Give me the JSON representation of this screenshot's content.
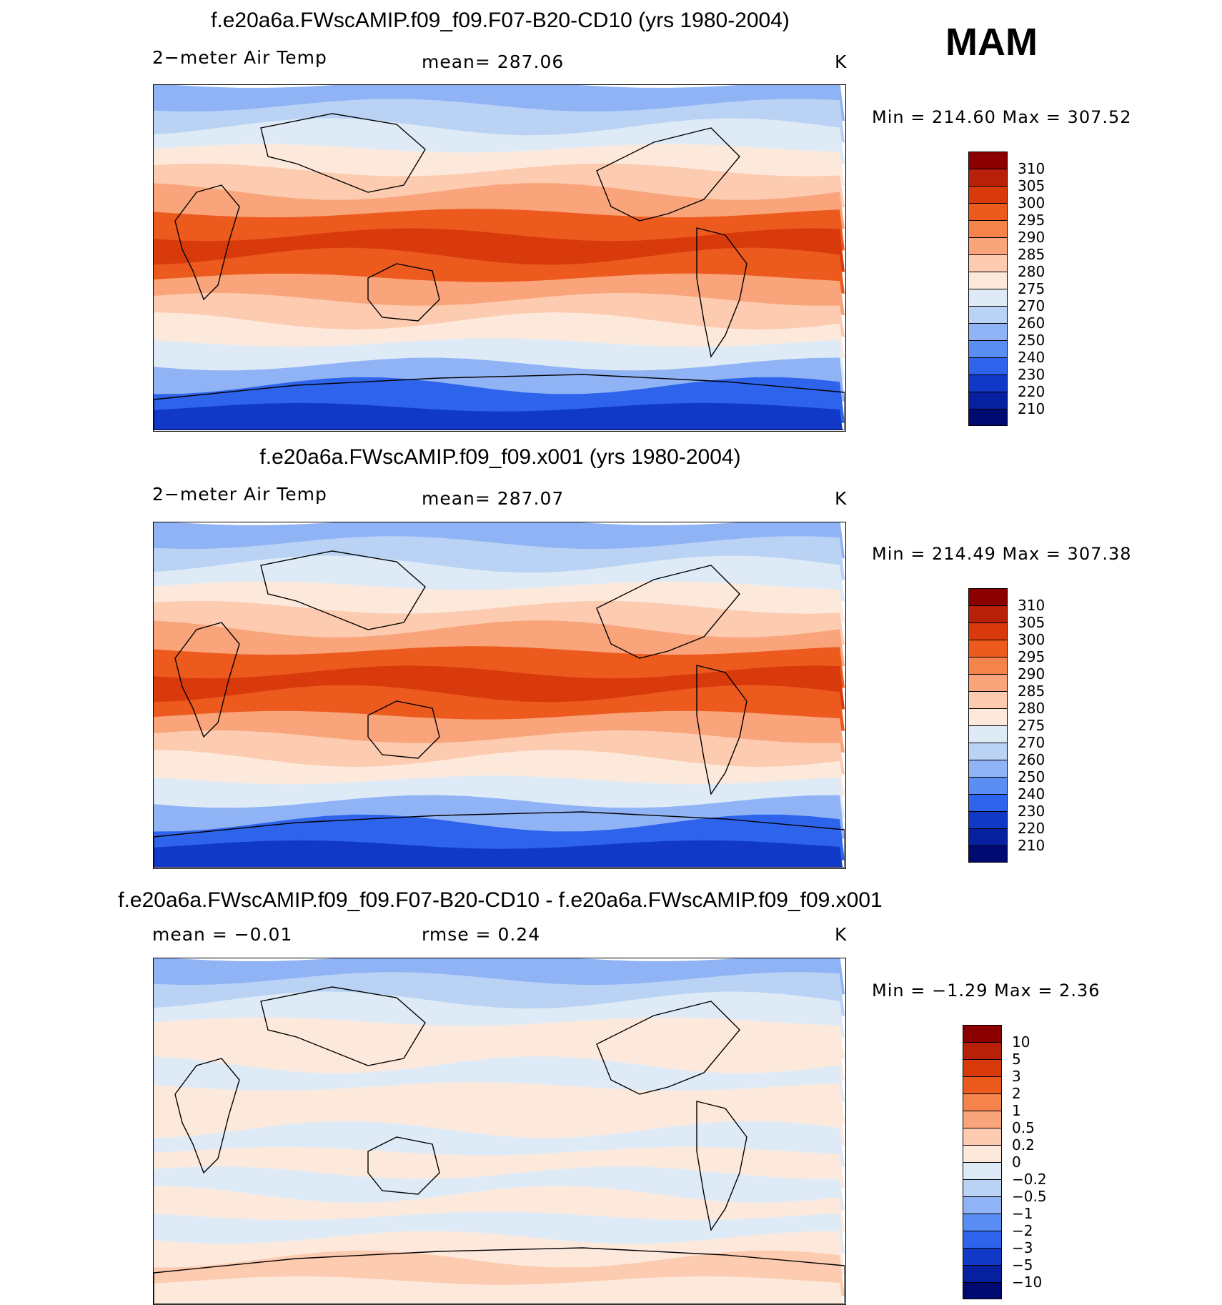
{
  "season": "MAM",
  "panels": [
    {
      "id": "control",
      "title": "f.e20a6a.FWscAMIP.f09_f09.F07-B20-CD10 (yrs 1980-2004)",
      "left_label": "2−meter Air Temp",
      "center_label": "mean=  287.06",
      "units": "K",
      "minmax": "Min  =  214.60  Max  =  307.52"
    },
    {
      "id": "test",
      "title": "f.e20a6a.FWscAMIP.f09_f09.x001 (yrs 1980-2004)",
      "left_label": "2−meter Air Temp",
      "center_label": "mean=  287.07",
      "units": "K",
      "minmax": "Min  =  214.49  Max  =  307.38"
    },
    {
      "id": "diff",
      "title": "f.e20a6a.FWscAMIP.f09_f09.F07-B20-CD10 - f.e20a6a.FWscAMIP.f09_f09.x001",
      "left_label": "mean  =    −0.01",
      "center_label": "rmse  =      0.24",
      "units": "K",
      "minmax": "Min  =    −1.29  Max  =      2.36"
    }
  ],
  "temp_colorbar": {
    "labels": [
      "310",
      "305",
      "300",
      "295",
      "290",
      "285",
      "280",
      "275",
      "270",
      "260",
      "250",
      "240",
      "230",
      "220",
      "210"
    ],
    "colors": [
      "#8b0000",
      "#b8200a",
      "#d93a0c",
      "#ec5a1e",
      "#f4834c",
      "#f9a47a",
      "#fccbb0",
      "#fde9dc",
      "#deebf7",
      "#bad3f5",
      "#8fb3f5",
      "#5b8ef5",
      "#2e63eb",
      "#1139c8",
      "#0620a0",
      "#000a70"
    ]
  },
  "diff_colorbar": {
    "labels": [
      "10",
      "5",
      "3",
      "2",
      "1",
      "0.5",
      "0.2",
      "0",
      "−0.2",
      "−0.5",
      "−1",
      "−2",
      "−3",
      "−5",
      "−10"
    ],
    "colors": [
      "#8b0000",
      "#b8200a",
      "#d93a0c",
      "#ec5a1e",
      "#f4834c",
      "#f9a47a",
      "#fccbb0",
      "#fde9dc",
      "#deebf7",
      "#bad3f5",
      "#8fb3f5",
      "#5b8ef5",
      "#2e63eb",
      "#1139c8",
      "#0620a0",
      "#000a70"
    ]
  },
  "map_fields": {
    "control": {
      "bands": [
        {
          "color": "#8fb3f5"
        },
        {
          "color": "#bad3f5"
        },
        {
          "color": "#deebf7"
        },
        {
          "color": "#fde9dc"
        },
        {
          "color": "#fccbb0"
        },
        {
          "color": "#f9a47a"
        },
        {
          "color": "#ec5a1e"
        },
        {
          "color": "#d93a0c"
        },
        {
          "color": "#ec5a1e"
        },
        {
          "color": "#f9a47a"
        },
        {
          "color": "#fccbb0"
        },
        {
          "color": "#fde9dc"
        },
        {
          "color": "#deebf7"
        },
        {
          "color": "#8fb3f5"
        },
        {
          "color": "#2e63eb"
        },
        {
          "color": "#1139c8"
        }
      ]
    },
    "test": {
      "bands": [
        {
          "color": "#8fb3f5"
        },
        {
          "color": "#bad3f5"
        },
        {
          "color": "#deebf7"
        },
        {
          "color": "#fde9dc"
        },
        {
          "color": "#fccbb0"
        },
        {
          "color": "#f9a47a"
        },
        {
          "color": "#ec5a1e"
        },
        {
          "color": "#d93a0c"
        },
        {
          "color": "#ec5a1e"
        },
        {
          "color": "#f9a47a"
        },
        {
          "color": "#fccbb0"
        },
        {
          "color": "#fde9dc"
        },
        {
          "color": "#deebf7"
        },
        {
          "color": "#8fb3f5"
        },
        {
          "color": "#2e63eb"
        },
        {
          "color": "#1139c8"
        }
      ]
    },
    "diff": {
      "bands": [
        {
          "color": "#8fb3f5"
        },
        {
          "color": "#bad3f5"
        },
        {
          "color": "#deebf7"
        },
        {
          "color": "#fde9dc"
        },
        {
          "color": "#fde9dc"
        },
        {
          "color": "#deebf7"
        },
        {
          "color": "#fde9dc"
        },
        {
          "color": "#fde9dc"
        },
        {
          "color": "#deebf7"
        },
        {
          "color": "#fde9dc"
        },
        {
          "color": "#deebf7"
        },
        {
          "color": "#fde9dc"
        },
        {
          "color": "#deebf7"
        },
        {
          "color": "#fde9dc"
        },
        {
          "color": "#fccbb0"
        },
        {
          "color": "#fde9dc"
        }
      ]
    }
  }
}
